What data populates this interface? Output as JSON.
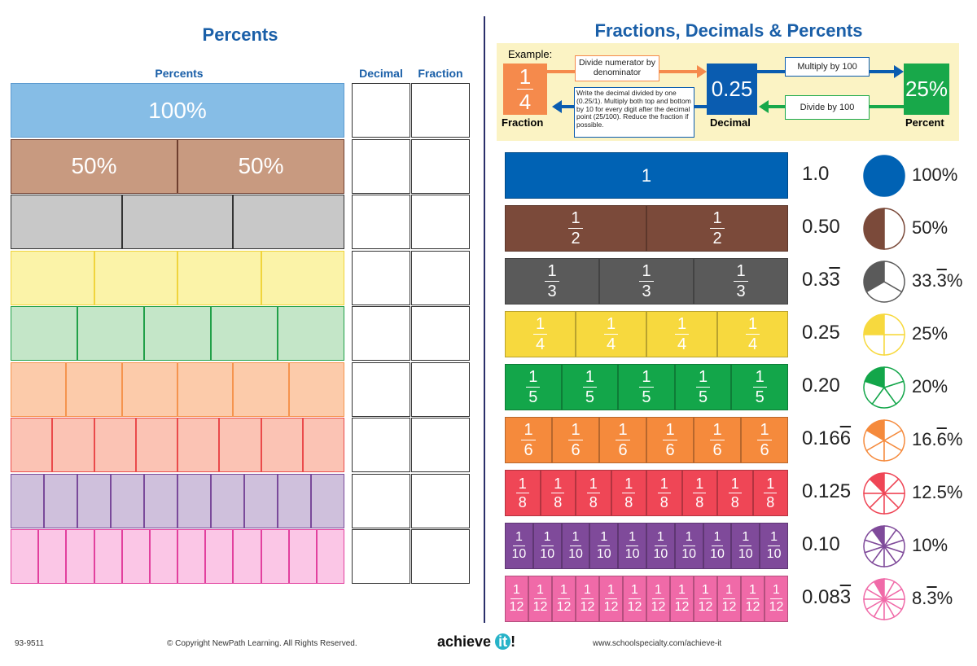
{
  "left": {
    "title": "Percents",
    "col_percents": "Percents",
    "col_decimal": "Decimal",
    "col_fraction": "Fraction",
    "rows": [
      {
        "parts": 1,
        "labels": [
          "100%"
        ],
        "fill": "#86bde6",
        "border": "#5d9bd0"
      },
      {
        "parts": 2,
        "labels": [
          "50%",
          "50%"
        ],
        "fill": "#c89a80",
        "border": "#6e3e2e"
      },
      {
        "parts": 3,
        "labels": [],
        "fill": "#c8c8c8",
        "border": "#333333"
      },
      {
        "parts": 4,
        "labels": [],
        "fill": "#fbf3a8",
        "border": "#f0d43c"
      },
      {
        "parts": 5,
        "labels": [],
        "fill": "#c4e6c8",
        "border": "#21a048"
      },
      {
        "parts": 6,
        "labels": [],
        "fill": "#fccbaa",
        "border": "#f5944e"
      },
      {
        "parts": 8,
        "labels": [],
        "fill": "#fbc3b4",
        "border": "#ea4a4a"
      },
      {
        "parts": 10,
        "labels": [],
        "fill": "#cfc0dc",
        "border": "#7a4a9a"
      },
      {
        "parts": 12,
        "labels": [],
        "fill": "#fbc6e6",
        "border": "#e2409e"
      }
    ]
  },
  "right": {
    "title": "Fractions, Decimals & Percents",
    "example": {
      "label": "Example:",
      "fraction_num": "1",
      "fraction_den": "4",
      "fraction_label": "Fraction",
      "decimal": "0.25",
      "decimal_label": "Decimal",
      "percent": "25%",
      "percent_label": "Percent",
      "step_divide": "Divide numerator by denominator",
      "step_multiply": "Multiply by 100",
      "step_divide100": "Divide by 100",
      "step_back": "Write the decimal divided by one (0.25/1). Multiply both top and bottom by 10 for every digit after the decimal point (25/100). Reduce the fraction if possible.",
      "colors": {
        "fraction": "#f58a4c",
        "decimal": "#0a5cb0",
        "percent": "#18a84a"
      }
    },
    "rows": [
      {
        "den": 1,
        "whole": "1",
        "dec": "1.0",
        "rep": "",
        "pct": "100%",
        "pct_rep": "",
        "pct_tail": "",
        "color": "#0062b4"
      },
      {
        "den": 2,
        "dec": "0.50",
        "rep": "",
        "pct": "50%",
        "pct_rep": "",
        "pct_tail": "",
        "color": "#7b4a3a"
      },
      {
        "den": 3,
        "dec": "0.3",
        "rep": "3",
        "pct": "33.",
        "pct_rep": "3",
        "pct_tail": "%",
        "color": "#5a5a5a"
      },
      {
        "den": 4,
        "dec": "0.25",
        "rep": "",
        "pct": "25%",
        "pct_rep": "",
        "pct_tail": "",
        "color": "#f7d93e"
      },
      {
        "den": 5,
        "dec": "0.20",
        "rep": "",
        "pct": "20%",
        "pct_rep": "",
        "pct_tail": "",
        "color": "#13a64a"
      },
      {
        "den": 6,
        "dec": "0.16",
        "rep": "6",
        "pct": "16.",
        "pct_rep": "6",
        "pct_tail": "%",
        "color": "#f58a3c"
      },
      {
        "den": 8,
        "dec": "0.125",
        "rep": "",
        "pct": "12.5%",
        "pct_rep": "",
        "pct_tail": "",
        "color": "#ef4656"
      },
      {
        "den": 10,
        "dec": "0.10",
        "rep": "",
        "pct": "10%",
        "pct_rep": "",
        "pct_tail": "",
        "color": "#7f4a9a"
      },
      {
        "den": 12,
        "dec": "0.08",
        "rep": "3",
        "pct": "8.",
        "pct_rep": "3",
        "pct_tail": "%",
        "color": "#f06aa8"
      }
    ]
  },
  "footer": {
    "code": "93-9511",
    "copyright": "© Copyright NewPath Learning. All Rights Reserved.",
    "logo": "achieve it!",
    "url": "www.schoolspecialty.com/achieve-it"
  }
}
